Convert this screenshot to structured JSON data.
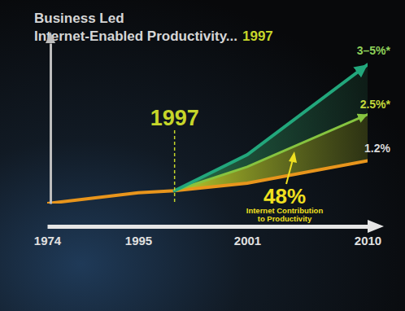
{
  "chart_data": {
    "type": "line",
    "title": [
      "Business Led",
      "Internet-Enabled Productivity..."
    ],
    "subtitle": "1997",
    "x": [
      1974,
      1995,
      1997,
      2001,
      2010
    ],
    "xlim": [
      1974,
      2010
    ],
    "xticks": [
      1974,
      1995,
      2001,
      2010
    ],
    "ylim": [
      0,
      4.5
    ],
    "yticks": [],
    "tick_labels": "x",
    "series": [
      {
        "name": "1.2%",
        "color": "#e8951c",
        "values": [
          0,
          0.3,
          0.36,
          0.57,
          1.2
        ]
      },
      {
        "name": "2.5%*",
        "color": "#86c440",
        "marker": "arrow",
        "values": [
          null,
          null,
          0.36,
          1.03,
          2.5
        ]
      },
      {
        "name": "3–5%*",
        "color": "#22a77c",
        "marker": "arrow",
        "values": [
          null,
          null,
          0.36,
          1.37,
          3.9
        ]
      }
    ],
    "annotations": [
      {
        "x": 1997
      },
      {
        "value": 48,
        "label": "48%",
        "text": [
          "Internet Contribution",
          "to Productivity"
        ]
      }
    ]
  }
}
